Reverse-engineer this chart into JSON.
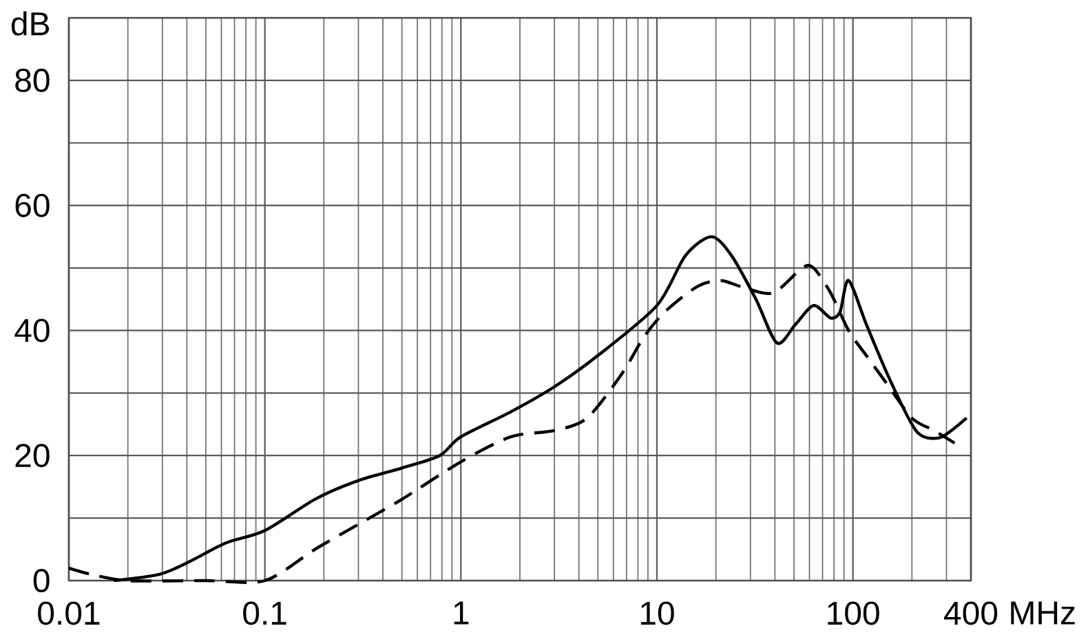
{
  "chart_data": {
    "type": "line",
    "xlabel": "MHz",
    "ylabel": "dB",
    "log": "x",
    "grid": true,
    "xlim": [
      0.01,
      400
    ],
    "xticks": [
      0.01,
      0.1,
      1,
      10,
      100,
      400
    ],
    "ylim": [
      0,
      90
    ],
    "yticks": [
      0,
      {
        "value": 10,
        "label": null
      },
      20,
      {
        "value": 30,
        "label": null
      },
      40,
      {
        "value": 50,
        "label": null
      },
      60,
      {
        "value": 70,
        "label": null
      },
      80,
      {
        "value": 90,
        "label": null
      }
    ],
    "series": [
      {
        "color": "#000000",
        "line_style": "solid",
        "x": [
          0.017,
          0.029,
          0.041,
          0.063,
          0.1,
          0.18,
          0.3,
          0.5,
          0.78,
          1,
          1.8,
          3,
          5,
          10,
          14,
          19,
          24,
          32,
          41,
          51,
          63,
          77,
          86,
          95,
          117,
          150,
          200,
          230,
          285,
          380
        ],
        "values": [
          0,
          1,
          3,
          6,
          8,
          13,
          16,
          18,
          20,
          23,
          27,
          31,
          36,
          44,
          52,
          55,
          52,
          45,
          38,
          41,
          44,
          42,
          43,
          48,
          41,
          33,
          25,
          23,
          23,
          26
        ]
      },
      {
        "color": "#000000",
        "line_style": "dashed",
        "x": [
          0.01,
          0.013,
          0.02,
          0.05,
          0.1,
          0.18,
          0.3,
          0.5,
          1,
          1.8,
          3,
          4.4,
          6.6,
          8.6,
          11,
          16,
          21,
          27,
          39,
          55,
          63,
          77,
          95,
          117,
          145,
          200,
          260,
          330
        ],
        "values": [
          2,
          1,
          0,
          0,
          0,
          5,
          9,
          13,
          19,
          23,
          24,
          26,
          33,
          39,
          43,
          47,
          48,
          47,
          46,
          50,
          50,
          46,
          40,
          36,
          32,
          26,
          24,
          22
        ]
      }
    ]
  }
}
